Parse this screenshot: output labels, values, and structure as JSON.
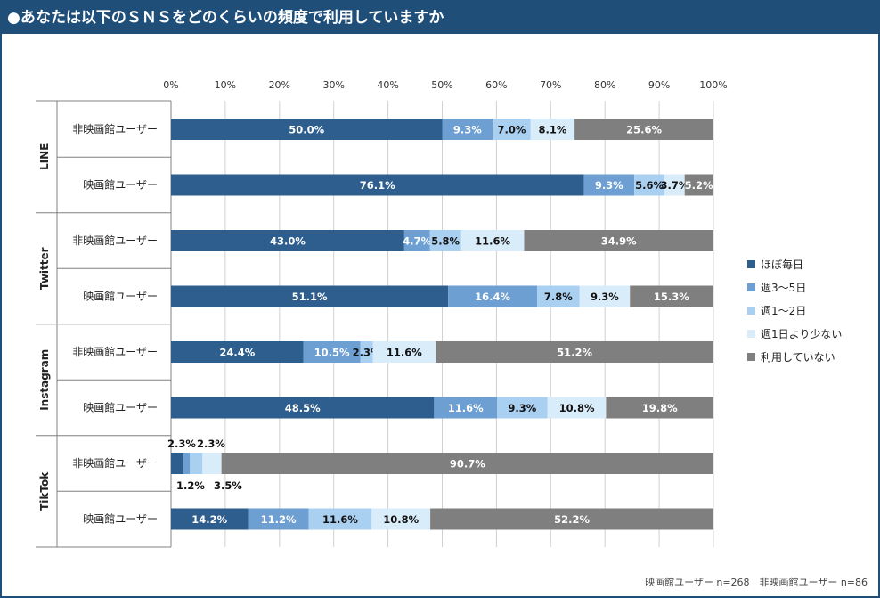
{
  "title": "●あなたは以下のＳＮＳをどのくらいの頻度で利用していますか",
  "footnote": "映画館ユーザー n=268　非映画館ユーザー n=86",
  "chart_data": {
    "type": "bar",
    "orientation": "horizontal",
    "stacked": true,
    "percent": true,
    "xlim": [
      0,
      100
    ],
    "ticks": [
      "0%",
      "10%",
      "20%",
      "30%",
      "40%",
      "50%",
      "60%",
      "70%",
      "80%",
      "90%",
      "100%"
    ],
    "legend_position": "right",
    "series": [
      {
        "name": "ほぼ毎日",
        "color": "#2e5e8e",
        "label_color": "#ffffff"
      },
      {
        "name": "週3～5日",
        "color": "#6d9fd2",
        "label_color": "#ffffff"
      },
      {
        "name": "週1～2日",
        "color": "#a9d0f1",
        "label_color": "#111111"
      },
      {
        "name": "週1日より少ない",
        "color": "#d9ecfa",
        "label_color": "#111111"
      },
      {
        "name": "利用していない",
        "color": "#7f7f7f",
        "label_color": "#ffffff"
      }
    ],
    "groups": [
      {
        "name": "LINE",
        "rows": [
          {
            "label": "非映画館ユーザー",
            "values": [
              50.0,
              9.3,
              7.0,
              8.1,
              25.6
            ],
            "labels": [
              "50.0%",
              "9.3%",
              "7.0%",
              "8.1%",
              "25.6%"
            ]
          },
          {
            "label": "映画館ユーザー",
            "values": [
              76.1,
              9.3,
              5.6,
              3.7,
              5.2
            ],
            "labels": [
              "76.1%",
              "9.3%",
              "5.6%",
              "3.7%",
              "5.2%"
            ]
          }
        ]
      },
      {
        "name": "Twitter",
        "rows": [
          {
            "label": "非映画館ユーザー",
            "values": [
              43.0,
              4.7,
              5.8,
              11.6,
              34.9
            ],
            "labels": [
              "43.0%",
              "4.7%",
              "5.8%",
              "11.6%",
              "34.9%"
            ]
          },
          {
            "label": "映画館ユーザー",
            "values": [
              51.1,
              16.4,
              7.8,
              9.3,
              15.3
            ],
            "labels": [
              "51.1%",
              "16.4%",
              "7.8%",
              "9.3%",
              "15.3%"
            ]
          }
        ]
      },
      {
        "name": "Instagram",
        "rows": [
          {
            "label": "非映画館ユーザー",
            "values": [
              24.4,
              10.5,
              2.3,
              11.6,
              51.2
            ],
            "labels": [
              "24.4%",
              "10.5%",
              "2.3%",
              "11.6%",
              "51.2%"
            ]
          },
          {
            "label": "映画館ユーザー",
            "values": [
              48.5,
              11.6,
              9.3,
              10.8,
              19.8
            ],
            "labels": [
              "48.5%",
              "11.6%",
              "9.3%",
              "10.8%",
              "19.8%"
            ]
          }
        ]
      },
      {
        "name": "TikTok",
        "rows": [
          {
            "label": "非映画館ユーザー",
            "values": [
              2.3,
              1.2,
              2.3,
              3.5,
              90.7
            ],
            "labels": [
              "2.3%",
              "1.2%",
              "2.3%",
              "3.5%",
              "90.7%"
            ]
          },
          {
            "label": "映画館ユーザー",
            "values": [
              14.2,
              11.2,
              11.6,
              10.8,
              52.2
            ],
            "labels": [
              "14.2%",
              "11.2%",
              "11.6%",
              "10.8%",
              "52.2%"
            ]
          }
        ]
      }
    ]
  }
}
